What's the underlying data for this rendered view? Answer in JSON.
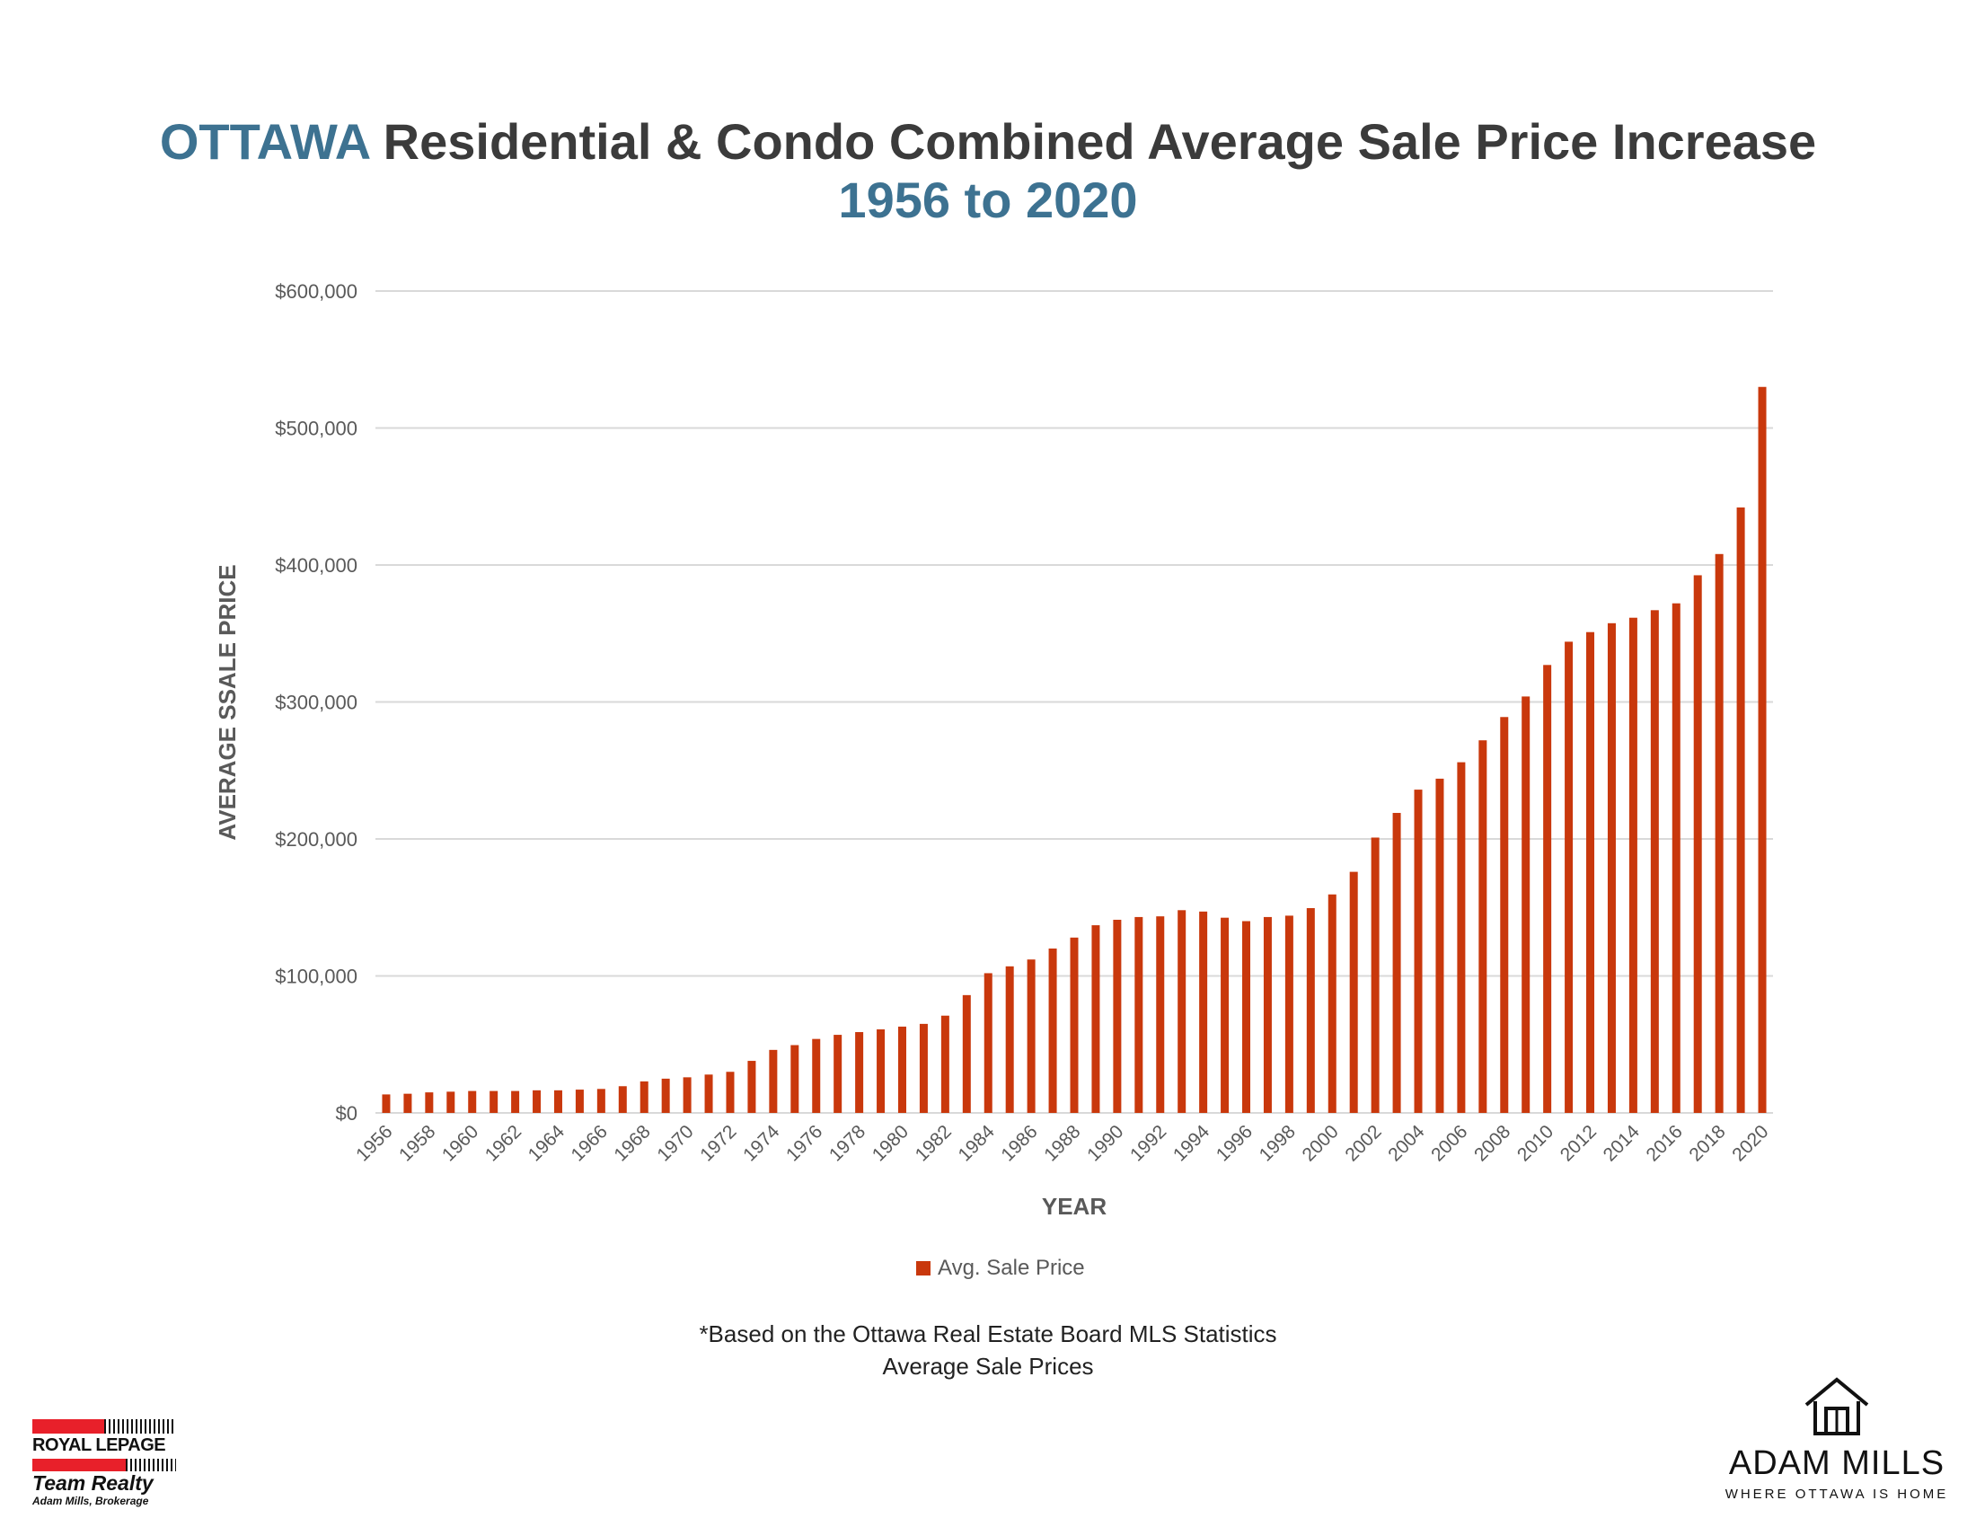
{
  "header": {
    "title_highlight": "OTTAWA",
    "title_rest": " Residential & Condo Combined Average Sale Price Increase",
    "subtitle": "1956 to 2020"
  },
  "colors": {
    "bar": "#c9380c",
    "title_accent": "#3d7291",
    "title_text": "#3b3b3b",
    "grid": "#d9d9d9"
  },
  "chart_data": {
    "type": "bar",
    "title": "OTTAWA Residential & Condo Combined Average Sale Price Increase 1956 to 2020",
    "xlabel": "YEAR",
    "ylabel": "AVERAGE SSALE PRICE",
    "ylim": [
      0,
      600000
    ],
    "yticks": [
      0,
      100000,
      200000,
      300000,
      400000,
      500000,
      600000
    ],
    "ytick_labels": [
      "$0",
      "$100,000",
      "$200,000",
      "$300,000",
      "$400,000",
      "$500,000",
      "$600,000"
    ],
    "grid": true,
    "legend_position": "bottom",
    "categories": [
      "1956",
      "1957",
      "1958",
      "1959",
      "1960",
      "1961",
      "1962",
      "1963",
      "1964",
      "1965",
      "1966",
      "1967",
      "1968",
      "1969",
      "1970",
      "1971",
      "1972",
      "1973",
      "1974",
      "1975",
      "1976",
      "1977",
      "1978",
      "1979",
      "1980",
      "1981",
      "1982",
      "1983",
      "1984",
      "1985",
      "1986",
      "1987",
      "1988",
      "1989",
      "1990",
      "1991",
      "1992",
      "1993",
      "1994",
      "1995",
      "1996",
      "1997",
      "1998",
      "1999",
      "2000",
      "2001",
      "2002",
      "2003",
      "2004",
      "2005",
      "2006",
      "2007",
      "2008",
      "2009",
      "2010",
      "2011",
      "2012",
      "2013",
      "2014",
      "2015",
      "2016",
      "2017",
      "2018",
      "2019",
      "2020"
    ],
    "xtick_labels": [
      "1956",
      "1958",
      "1960",
      "1962",
      "1964",
      "1966",
      "1968",
      "1970",
      "1972",
      "1974",
      "1976",
      "1978",
      "1980",
      "1982",
      "1984",
      "1986",
      "1988",
      "1990",
      "1992",
      "1994",
      "1996",
      "1998",
      "2000",
      "2002",
      "2004",
      "2006",
      "2008",
      "2010",
      "2012",
      "2014",
      "2016",
      "2018",
      "2020"
    ],
    "series": [
      {
        "name": "Avg. Sale Price",
        "values": [
          13500,
          14000,
          15000,
          15500,
          16000,
          16000,
          16000,
          16500,
          16500,
          17000,
          17500,
          19500,
          23000,
          25000,
          26000,
          28000,
          30000,
          38000,
          46000,
          49500,
          54000,
          57000,
          59000,
          61000,
          63000,
          65000,
          71000,
          86000,
          102000,
          107000,
          112000,
          120000,
          128000,
          137000,
          141000,
          143000,
          143500,
          148000,
          147000,
          142500,
          140000,
          143000,
          144000,
          149500,
          159500,
          176000,
          201000,
          219000,
          236000,
          244000,
          256000,
          272000,
          289000,
          304000,
          327000,
          344000,
          351000,
          357500,
          361500,
          367000,
          372000,
          392500,
          408000,
          442000,
          530000
        ]
      }
    ]
  },
  "legend": {
    "label": "Avg. Sale Price"
  },
  "footnote": {
    "line1": "*Based on the Ottawa Real Estate Board MLS Statistics",
    "line2": "Average Sale Prices"
  },
  "logos": {
    "royal_lepage": {
      "name": "ROYAL LEPAGE",
      "team": "Team Realty",
      "brokerage": "Adam Mills, Brokerage"
    },
    "adam_mills": {
      "name": "ADAM MILLS",
      "tagline": "WHERE OTTAWA IS HOME",
      "icon": "house-icon"
    }
  }
}
